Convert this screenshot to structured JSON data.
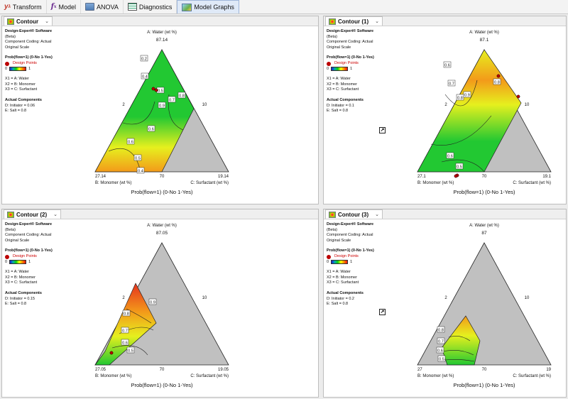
{
  "toolbar": {
    "items": [
      {
        "label": "Transform",
        "icon": "transform-icon"
      },
      {
        "label": "Model",
        "icon": "fx-icon"
      },
      {
        "label": "ANOVA",
        "icon": "anova-icon"
      },
      {
        "label": "Diagnostics",
        "icon": "diagnostics-icon"
      },
      {
        "label": "Model Graphs",
        "icon": "model-graphs-icon",
        "active": true
      }
    ]
  },
  "common": {
    "software": "Design-Expert® Software",
    "beta": "(Beta)",
    "coding": "Component Coding: Actual",
    "scale": "Original Scale",
    "response": "Prob(flow=1) (0-No 1-Yes)",
    "design_points": "Design Points",
    "legend_min": "0",
    "legend_max": "1",
    "x1": "X1 = A: Water",
    "x2": "X2 = B: Monomer",
    "x3": "X3 = C: Surfactant",
    "actual_components": "Actual Components",
    "salt": "E: Salt = 0.8",
    "apex_label": "A: Water (wt %)",
    "left_label": "B: Monomer (wt %)",
    "right_label": "C: Surfactant (wt %)",
    "left_side_tick": "2",
    "right_side_tick": "10",
    "bottom_mid_tick": "70",
    "x_title": "Prob(flow=1) (0-No 1-Yes)"
  },
  "panels": [
    {
      "tab": "Contour",
      "initiator": "D: Initiator = 0.06",
      "apex_value": "87.14",
      "left_value": "27.14",
      "right_value": "19.14",
      "contour_labels": [
        "0.2",
        "0.4",
        "0.5",
        "0.7",
        "0.8",
        "0.9",
        "0.6",
        "0.6",
        "0.5",
        "0.4"
      ]
    },
    {
      "tab": "Contour (1)",
      "initiator": "D: Initiator = 0.1",
      "apex_value": "87.1",
      "left_value": "27.1",
      "right_value": "19.1",
      "contour_labels": [
        "0.6",
        "0.7",
        "0.8",
        "0.9",
        "0.8",
        "0.6",
        "0.5"
      ]
    },
    {
      "tab": "Contour (2)",
      "initiator": "D: Initiator = 0.15",
      "apex_value": "87.05",
      "left_value": "27.05",
      "right_value": "19.05",
      "contour_labels": [
        "0.9",
        "0.8",
        "0.7",
        "0.6",
        "0.5"
      ]
    },
    {
      "tab": "Contour (3)",
      "initiator": "D: Initiator = 0.2",
      "apex_value": "87",
      "left_value": "27",
      "right_value": "19",
      "contour_labels": [
        "0.8",
        "0.7",
        "0.6",
        "0.5"
      ]
    }
  ],
  "colors": {
    "gray_region": "#c0c0c0",
    "green": "#22c832",
    "yellow": "#e6f01e",
    "orange": "#f39a1a",
    "red": "#e5321e",
    "design_point": "#b40000"
  }
}
